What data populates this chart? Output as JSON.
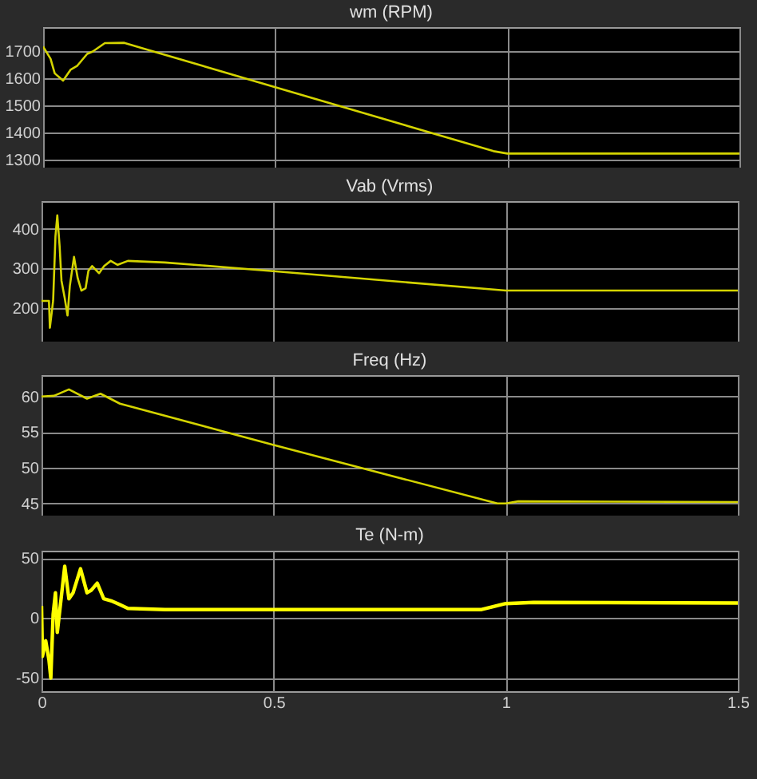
{
  "chart_data": [
    {
      "type": "line",
      "title": "wm (RPM)",
      "x": [
        0,
        0.016,
        0.025,
        0.043,
        0.059,
        0.073,
        0.095,
        0.107,
        0.133,
        0.175,
        0.22,
        0.5,
        0.97,
        1.0,
        1.5
      ],
      "values": [
        1718,
        1673,
        1619,
        1592,
        1632,
        1646,
        1691,
        1700,
        1731,
        1732,
        1709,
        1568,
        1331,
        1322,
        1322
      ],
      "color": "#d4d400",
      "xlim": [
        0,
        1.5
      ],
      "xticks": [
        0,
        0.5,
        1,
        1.5
      ],
      "ylim": [
        1270,
        1790
      ],
      "yticks": [
        1300,
        1400,
        1500,
        1600,
        1700
      ],
      "grid": true,
      "tick_labels": "y"
    },
    {
      "type": "line",
      "title": "Vab (Vrms)",
      "x": [
        0,
        0.016,
        0.018,
        0.025,
        0.03,
        0.034,
        0.039,
        0.043,
        0.05,
        0.056,
        0.061,
        0.07,
        0.078,
        0.086,
        0.095,
        0.101,
        0.109,
        0.124,
        0.135,
        0.149,
        0.164,
        0.186,
        0.266,
        0.5,
        1.0,
        1.5
      ],
      "values": [
        218,
        218,
        150,
        218,
        381,
        434,
        356,
        269,
        225,
        181,
        256,
        329,
        275,
        244,
        250,
        294,
        306,
        288,
        306,
        319,
        309,
        319,
        315,
        293,
        244,
        244
      ],
      "color": "#d4d400",
      "xlim": [
        0,
        1.5
      ],
      "xticks": [
        0,
        0.5,
        1,
        1.5
      ],
      "ylim": [
        115,
        470
      ],
      "yticks": [
        200,
        300,
        400
      ],
      "grid": true,
      "tick_labels": "y"
    },
    {
      "type": "line",
      "title": "Freq (Hz)",
      "x": [
        0,
        0.027,
        0.059,
        0.098,
        0.127,
        0.169,
        0.5,
        0.982,
        1.0,
        1.027,
        1.5
      ],
      "values": [
        60,
        60.1,
        61,
        59.7,
        60.4,
        59,
        53.2,
        45,
        45,
        45.3,
        45.2
      ],
      "color": "#d4d400",
      "xlim": [
        0,
        1.5
      ],
      "xticks": [
        0,
        0.5,
        1,
        1.5
      ],
      "ylim": [
        43.3,
        63
      ],
      "yticks": [
        45,
        50,
        55,
        60
      ],
      "grid": true,
      "tick_labels": "y"
    },
    {
      "type": "line",
      "title": "Te (N-m)",
      "x": [
        0,
        0.002,
        0.009,
        0.016,
        0.02,
        0.025,
        0.03,
        0.034,
        0.041,
        0.05,
        0.059,
        0.068,
        0.084,
        0.098,
        0.107,
        0.12,
        0.134,
        0.152,
        0.164,
        0.186,
        0.266,
        0.5,
        0.948,
        1.0,
        1.06,
        1.5
      ],
      "values": [
        10,
        -32,
        -19,
        -35,
        -50,
        3,
        21,
        -12,
        12,
        43,
        16,
        21,
        41,
        21,
        23,
        29,
        16,
        14,
        12,
        8,
        7,
        7,
        7,
        12,
        13,
        12.5
      ],
      "color": "#ffff00",
      "xlim": [
        0,
        1.5
      ],
      "xticks": [
        0,
        0.5,
        1,
        1.5
      ],
      "ylim": [
        -61,
        56
      ],
      "yticks": [
        -50,
        0,
        50
      ],
      "grid": true
    }
  ]
}
